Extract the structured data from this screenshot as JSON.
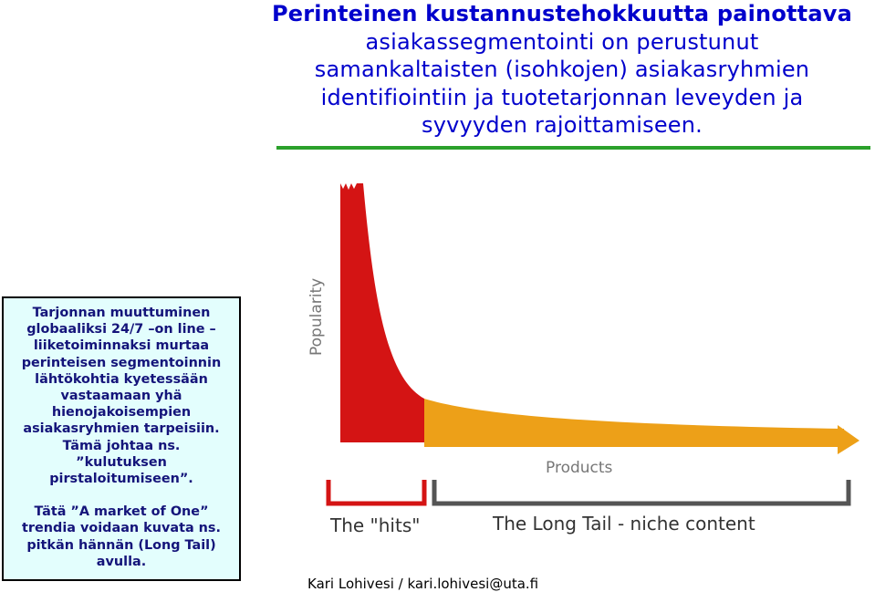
{
  "heading": {
    "bold_line": "Perinteinen kustannustehokkuutta painottava",
    "lines": [
      "asiakassegmentointi on perustunut",
      "samankaltaisten (isohkojen) asiakasryhmien",
      "identifiointiin ja tuotetarjonnan leveyden ja",
      "syvyyden rajoittamiseen."
    ]
  },
  "textbox": {
    "para1": [
      "Tarjonnan muuttuminen",
      "globaaliksi 24/7 –on line –",
      "liiketoiminnaksi murtaa",
      "perinteisen segmentoinnin",
      "lähtökohtia kyetessään",
      "vastaamaan yhä",
      "hienojakoisempien",
      "asiakasryhmien tarpeisiin.",
      "Tämä johtaa ns.",
      "”kulutuksen",
      "pirstaloitumiseen”."
    ],
    "para2": [
      "Tätä ”A market of One”",
      "trendia voidaan kuvata ns.",
      "pitkän hännän (Long Tail)",
      "avulla."
    ]
  },
  "diagram": {
    "y_axis_label": "Popularity",
    "x_axis_label": "Products",
    "hits_label": "The \"hits\"",
    "tail_label": "The Long Tail - niche content",
    "colors": {
      "hits": "#d41414",
      "tail": "#eda018",
      "bracket": "#555555",
      "hits_bracket": "#d41414"
    }
  },
  "credit": "Kari Lohivesi / kari.lohivesi@uta.fi"
}
